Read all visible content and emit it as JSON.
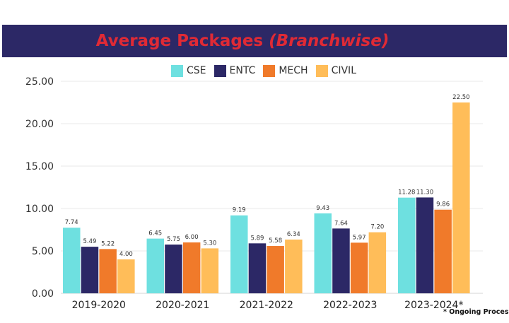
{
  "header": {
    "title_main": "Average Packages",
    "title_italic": "(Branchwise)"
  },
  "footnote": "* Ongoing Process",
  "chart_data": {
    "type": "bar",
    "title": "Average Packages (Branchwise)",
    "categories": [
      "2019-2020",
      "2020-2021",
      "2021-2022",
      "2022-2023",
      "2023-2024*"
    ],
    "series": [
      {
        "name": "CSE",
        "color": "#6ee0e0",
        "values": [
          7.74,
          6.45,
          9.19,
          9.43,
          11.28
        ],
        "labels": [
          "7.74",
          "6.45",
          "9.19",
          "9.43",
          "11.28"
        ]
      },
      {
        "name": "ENTC",
        "color": "#2c2866",
        "values": [
          5.49,
          5.75,
          5.89,
          7.64,
          11.3
        ],
        "labels": [
          "5.49",
          "5.75",
          "5.89",
          "7.64",
          "11.30"
        ]
      },
      {
        "name": "MECH",
        "color": "#f07a2a",
        "values": [
          5.22,
          6.0,
          5.58,
          5.97,
          9.86
        ],
        "labels": [
          "5.22",
          "6.00",
          "5.58",
          "5.97",
          "9.86"
        ]
      },
      {
        "name": "CIVIL",
        "color": "#ffbd59",
        "values": [
          4.0,
          5.3,
          6.34,
          7.2,
          22.5
        ],
        "labels": [
          "4.00",
          "5.30",
          "6.34",
          "7.20",
          "22.50"
        ]
      }
    ],
    "yticks": [
      "0.00",
      "5.00",
      "10.00",
      "15.00",
      "20.00",
      "25.00"
    ],
    "ylim": [
      0,
      25
    ],
    "grid": true,
    "legend_position": "top-center"
  }
}
